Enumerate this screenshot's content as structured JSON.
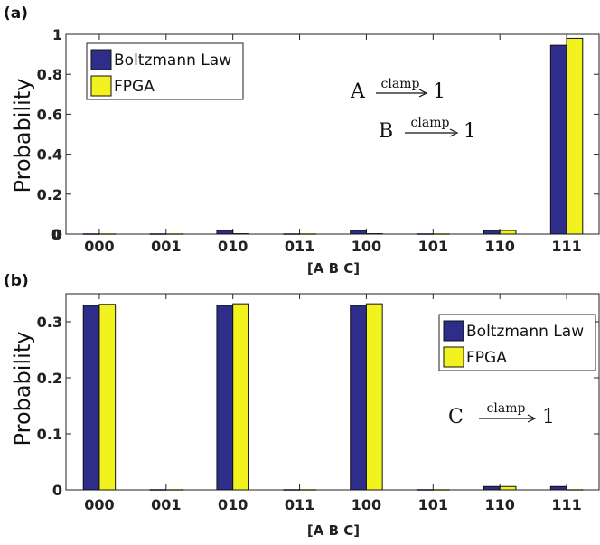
{
  "chart_data": [
    {
      "panel_label": "(a)",
      "type": "bar",
      "categories": [
        "000",
        "001",
        "010",
        "011",
        "100",
        "101",
        "110",
        "111"
      ],
      "series": [
        {
          "name": "Boltzmann Law",
          "color": "#2e2e8a",
          "values": [
            0.0,
            0.0,
            0.018,
            0.0,
            0.018,
            0.0,
            0.018,
            0.945
          ]
        },
        {
          "name": "FPGA",
          "color": "#f2f21e",
          "values": [
            0.0,
            0.0,
            0.002,
            0.0,
            0.002,
            0.0,
            0.018,
            0.98
          ]
        }
      ],
      "ylabel": "Probability",
      "xlabel": "[A B C]",
      "ylim": [
        0,
        1
      ],
      "yticks": [
        "0",
        "0.2",
        "0.4",
        "0.6",
        "0.8",
        "1"
      ],
      "extra_zero_tick": "0",
      "legend": "top-left",
      "annotations": [
        {
          "var": "A",
          "arrow_label": "clamp",
          "value": "1"
        },
        {
          "var": "B",
          "arrow_label": "clamp",
          "value": "1"
        }
      ]
    },
    {
      "panel_label": "(b)",
      "type": "bar",
      "categories": [
        "000",
        "001",
        "010",
        "011",
        "100",
        "101",
        "110",
        "111"
      ],
      "series": [
        {
          "name": "Boltzmann Law",
          "color": "#2e2e8a",
          "values": [
            0.329,
            0.0,
            0.329,
            0.0,
            0.329,
            0.0,
            0.006,
            0.006
          ]
        },
        {
          "name": "FPGA",
          "color": "#f2f21e",
          "values": [
            0.331,
            0.0,
            0.332,
            0.0,
            0.332,
            0.0,
            0.006,
            0.0
          ]
        }
      ],
      "ylabel": "Probability",
      "xlabel": "[A B C]",
      "ylim": [
        0,
        0.35
      ],
      "yticks": [
        "0",
        "0.1",
        "0.2",
        "0.3"
      ],
      "legend": "top-right",
      "annotations": [
        {
          "var": "C",
          "arrow_label": "clamp",
          "value": "1"
        }
      ]
    }
  ]
}
